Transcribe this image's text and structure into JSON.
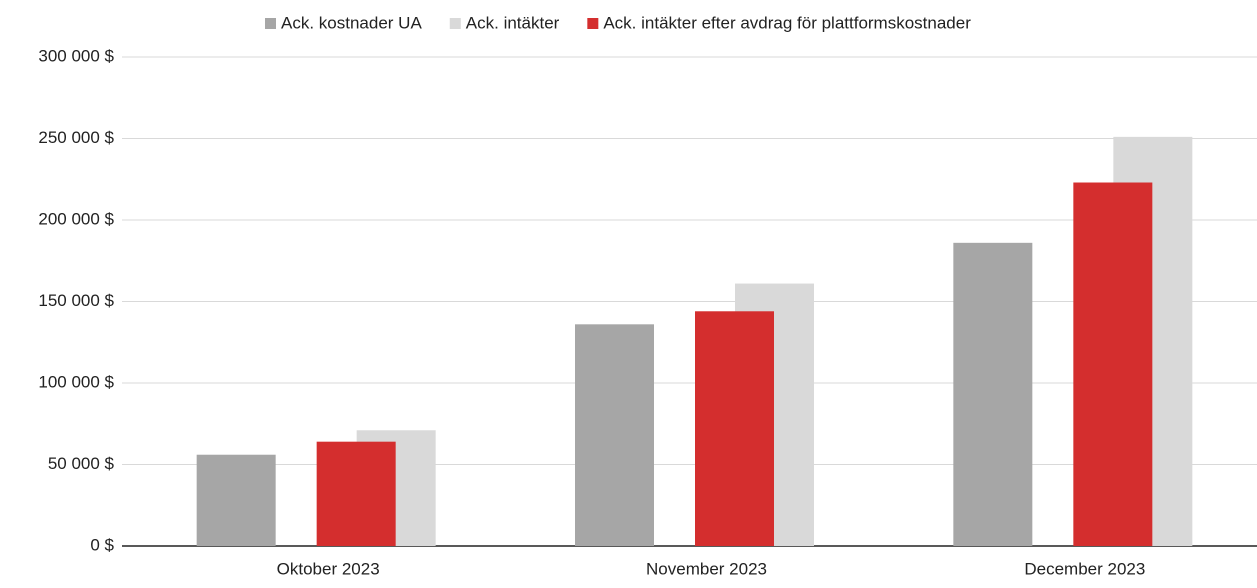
{
  "chart_data": {
    "type": "bar",
    "categories": [
      "Oktober 2023",
      "November 2023",
      "December 2023"
    ],
    "series": [
      {
        "name": "Ack. kostnader UA",
        "color": "#a6a6a6",
        "values": [
          56000,
          136000,
          186000
        ]
      },
      {
        "name": "Ack. intäkter",
        "color": "#d9d9d9",
        "values": [
          71000,
          161000,
          251000
        ]
      },
      {
        "name": "Ack. intäkter efter avdrag för plattformskostnader",
        "color": "#d42e2e",
        "values": [
          64000,
          144000,
          223000
        ]
      }
    ],
    "ylim": [
      0,
      300000
    ],
    "yticks": [
      {
        "value": 0,
        "label": "0 $"
      },
      {
        "value": 50000,
        "label": "50 000 $"
      },
      {
        "value": 100000,
        "label": "100 000 $"
      },
      {
        "value": 150000,
        "label": "150 000 $"
      },
      {
        "value": 200000,
        "label": "200 000 $"
      },
      {
        "value": 250000,
        "label": "250 000 $"
      },
      {
        "value": 300000,
        "label": "300 000 $"
      }
    ],
    "grid": true,
    "legend": "top"
  }
}
